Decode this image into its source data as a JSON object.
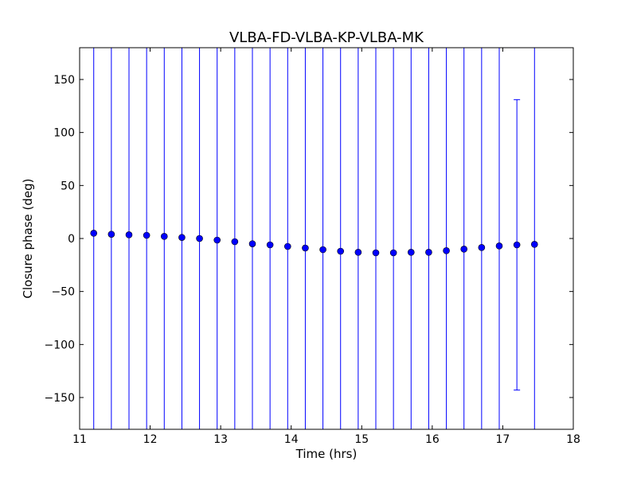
{
  "chart_data": {
    "type": "scatter",
    "title": "VLBA-FD-VLBA-KP-VLBA-MK",
    "xlabel": "Time (hrs)",
    "ylabel": "Closure phase (deg)",
    "xlim": [
      11,
      18
    ],
    "ylim": [
      -180,
      180
    ],
    "xticks": [
      11,
      12,
      13,
      14,
      15,
      16,
      17,
      18
    ],
    "xtick_labels": [
      "11",
      "12",
      "13",
      "14",
      "15",
      "16",
      "17",
      "18"
    ],
    "yticks": [
      150,
      100,
      50,
      0,
      -50,
      -100,
      -150
    ],
    "ytick_labels": [
      "150",
      "100",
      "50",
      "0",
      "−50",
      "−100",
      "−150"
    ],
    "grid": false,
    "colors": {
      "marker": "#0000ff",
      "errorbar": "#0000ff",
      "axes": "#000000"
    },
    "series": [
      {
        "marker": "circle",
        "points": [
          {
            "x": 11.2,
            "y": 5.0,
            "ylo": -180,
            "yhi": 180
          },
          {
            "x": 11.45,
            "y": 4.0,
            "ylo": -180,
            "yhi": 180
          },
          {
            "x": 11.7,
            "y": 3.5,
            "ylo": -180,
            "yhi": 180
          },
          {
            "x": 11.95,
            "y": 3.0,
            "ylo": -180,
            "yhi": 180
          },
          {
            "x": 12.2,
            "y": 2.0,
            "ylo": -180,
            "yhi": 180
          },
          {
            "x": 12.45,
            "y": 1.0,
            "ylo": -180,
            "yhi": 180
          },
          {
            "x": 12.7,
            "y": 0.0,
            "ylo": -180,
            "yhi": 180
          },
          {
            "x": 12.95,
            "y": -1.5,
            "ylo": -180,
            "yhi": 180
          },
          {
            "x": 13.2,
            "y": -3.0,
            "ylo": -180,
            "yhi": 180
          },
          {
            "x": 13.45,
            "y": -5.0,
            "ylo": -180,
            "yhi": 180
          },
          {
            "x": 13.7,
            "y": -6.0,
            "ylo": -180,
            "yhi": 180
          },
          {
            "x": 13.95,
            "y": -7.5,
            "ylo": -180,
            "yhi": 180
          },
          {
            "x": 14.2,
            "y": -9.0,
            "ylo": -180,
            "yhi": 180
          },
          {
            "x": 14.45,
            "y": -10.5,
            "ylo": -180,
            "yhi": 180
          },
          {
            "x": 14.7,
            "y": -12.0,
            "ylo": -180,
            "yhi": 180
          },
          {
            "x": 14.95,
            "y": -13.0,
            "ylo": -180,
            "yhi": 180
          },
          {
            "x": 15.2,
            "y": -13.5,
            "ylo": -180,
            "yhi": 180
          },
          {
            "x": 15.45,
            "y": -13.5,
            "ylo": -180,
            "yhi": 180
          },
          {
            "x": 15.7,
            "y": -13.0,
            "ylo": -180,
            "yhi": 180
          },
          {
            "x": 15.95,
            "y": -13.0,
            "ylo": -180,
            "yhi": 180
          },
          {
            "x": 16.2,
            "y": -11.5,
            "ylo": -180,
            "yhi": 180
          },
          {
            "x": 16.45,
            "y": -10.0,
            "ylo": -180,
            "yhi": 180
          },
          {
            "x": 16.7,
            "y": -8.5,
            "ylo": -180,
            "yhi": 180
          },
          {
            "x": 16.95,
            "y": -7.0,
            "ylo": -180,
            "yhi": 180
          },
          {
            "x": 17.2,
            "y": -6.0,
            "ylo": -143,
            "yhi": 131,
            "capped": true
          },
          {
            "x": 17.45,
            "y": -5.5,
            "ylo": -180,
            "yhi": 180
          }
        ]
      }
    ]
  }
}
